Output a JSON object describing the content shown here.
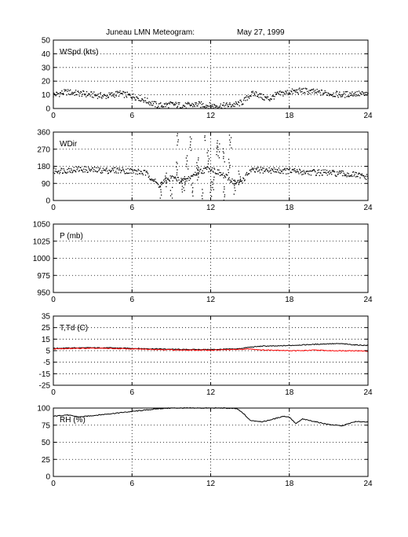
{
  "figure": {
    "title": "Juneau LMN Meteogram:",
    "date": "May 27, 1999"
  },
  "chart_data": [
    {
      "type": "scatter",
      "label": "WSpd (kts)",
      "x_range": [
        0,
        24
      ],
      "ylim": [
        0,
        50
      ],
      "x_ticks": [
        "0",
        "6",
        "12",
        "18",
        "24"
      ],
      "y_ticks": [
        "0",
        "10",
        "20",
        "30",
        "40",
        "50"
      ],
      "grid": true,
      "series": [
        {
          "color": "#000000",
          "x": [
            0,
            1,
            2,
            3,
            4,
            5,
            6,
            6.5,
            7,
            7.5,
            8,
            9,
            10,
            11,
            12,
            13,
            14,
            14.5,
            15,
            15.5,
            16,
            16.5,
            17,
            18,
            19,
            20,
            21,
            22,
            23,
            24
          ],
          "y": [
            10,
            12,
            11,
            10,
            9,
            11,
            9,
            8,
            6,
            4,
            2,
            3,
            2,
            3,
            2,
            2,
            3,
            5,
            10,
            11,
            8,
            7,
            10,
            12,
            13,
            12,
            11,
            10,
            11,
            10
          ]
        }
      ]
    },
    {
      "type": "scatter",
      "label": "WDir",
      "x_range": [
        0,
        24
      ],
      "ylim": [
        0,
        360
      ],
      "x_ticks": [
        "0",
        "6",
        "12",
        "18",
        "24"
      ],
      "y_ticks": [
        "0",
        "90",
        "180",
        "270",
        "360"
      ],
      "grid": true,
      "series": [
        {
          "color": "#000000",
          "x": [
            0,
            1,
            2,
            3,
            4,
            5,
            6,
            6.5,
            7,
            7.5,
            8,
            9,
            10,
            11,
            12,
            13,
            14,
            14.5,
            15,
            16,
            17,
            18,
            19,
            20,
            21,
            22,
            23,
            24
          ],
          "y": [
            155,
            160,
            165,
            160,
            158,
            160,
            155,
            150,
            145,
            120,
            80,
            120,
            100,
            150,
            170,
            130,
            90,
            110,
            155,
            160,
            158,
            155,
            150,
            148,
            145,
            140,
            135,
            120
          ],
          "scatter_x": [
            8.2,
            8.6,
            9.0,
            9.4,
            9.8,
            10.2,
            10.6,
            11.0,
            11.4,
            11.8,
            12.2,
            12.6,
            13.0,
            13.4,
            13.8,
            14.2,
            9.5,
            10.5,
            11.5,
            12.5,
            13.5,
            10.0,
            11.0,
            12.0,
            13.0
          ],
          "scatter_y": [
            50,
            110,
            30,
            170,
            80,
            200,
            60,
            140,
            20,
            230,
            90,
            260,
            40,
            180,
            70,
            120,
            330,
            300,
            350,
            280,
            310,
            90,
            190,
            60,
            240
          ]
        }
      ]
    },
    {
      "type": "line",
      "label": "P (mb)",
      "x_range": [
        0,
        24
      ],
      "ylim": [
        950,
        1050
      ],
      "x_ticks": [
        "0",
        "6",
        "12",
        "18",
        "24"
      ],
      "y_ticks": [
        "950",
        "975",
        "1000",
        "1025",
        "1050"
      ],
      "grid": true,
      "series": []
    },
    {
      "type": "line",
      "label": "T,Td (C)",
      "x_range": [
        0,
        24
      ],
      "ylim": [
        -25,
        35
      ],
      "x_ticks": [
        "0",
        "6",
        "12",
        "18",
        "24"
      ],
      "y_ticks": [
        "-25",
        "-15",
        "-5",
        "5",
        "15",
        "25",
        "35"
      ],
      "grid": true,
      "series": [
        {
          "color": "#000000",
          "x": [
            0,
            2,
            4,
            6,
            8,
            10,
            12,
            14,
            15,
            16,
            17,
            18,
            19,
            20,
            21,
            22,
            23,
            24
          ],
          "y": [
            7,
            7.5,
            7.5,
            7,
            6.5,
            6,
            6,
            6.5,
            8,
            9,
            9,
            9.5,
            10,
            10.5,
            11,
            11,
            10,
            9.5
          ]
        },
        {
          "color": "#ff0000",
          "x": [
            0,
            2,
            4,
            6,
            8,
            10,
            12,
            14,
            15,
            16,
            17,
            18,
            19,
            20,
            21,
            22,
            23,
            24
          ],
          "y": [
            6.5,
            7,
            7,
            6.5,
            6,
            5.5,
            5.5,
            6,
            6.5,
            5.5,
            5.5,
            5,
            5,
            5.5,
            5,
            5,
            5,
            4.5
          ]
        }
      ]
    },
    {
      "type": "line",
      "label": "RH (%)",
      "x_range": [
        0,
        24
      ],
      "ylim": [
        0,
        100
      ],
      "x_ticks": [
        "0",
        "6",
        "12",
        "18",
        "24"
      ],
      "y_ticks": [
        "0",
        "25",
        "50",
        "75",
        "100"
      ],
      "grid": true,
      "series": [
        {
          "color": "#000000",
          "x": [
            0,
            1,
            2,
            3,
            4,
            5,
            6,
            7,
            8,
            9,
            10,
            11,
            12,
            13,
            14,
            14.5,
            15,
            16,
            17,
            17.5,
            18,
            18.5,
            19,
            20,
            21,
            22,
            23,
            24
          ],
          "y": [
            88,
            90,
            87,
            89,
            91,
            93,
            95,
            97,
            99,
            100,
            100,
            100,
            100,
            100,
            99,
            92,
            82,
            80,
            85,
            88,
            87,
            77,
            84,
            80,
            76,
            74,
            80,
            80
          ]
        }
      ]
    }
  ]
}
